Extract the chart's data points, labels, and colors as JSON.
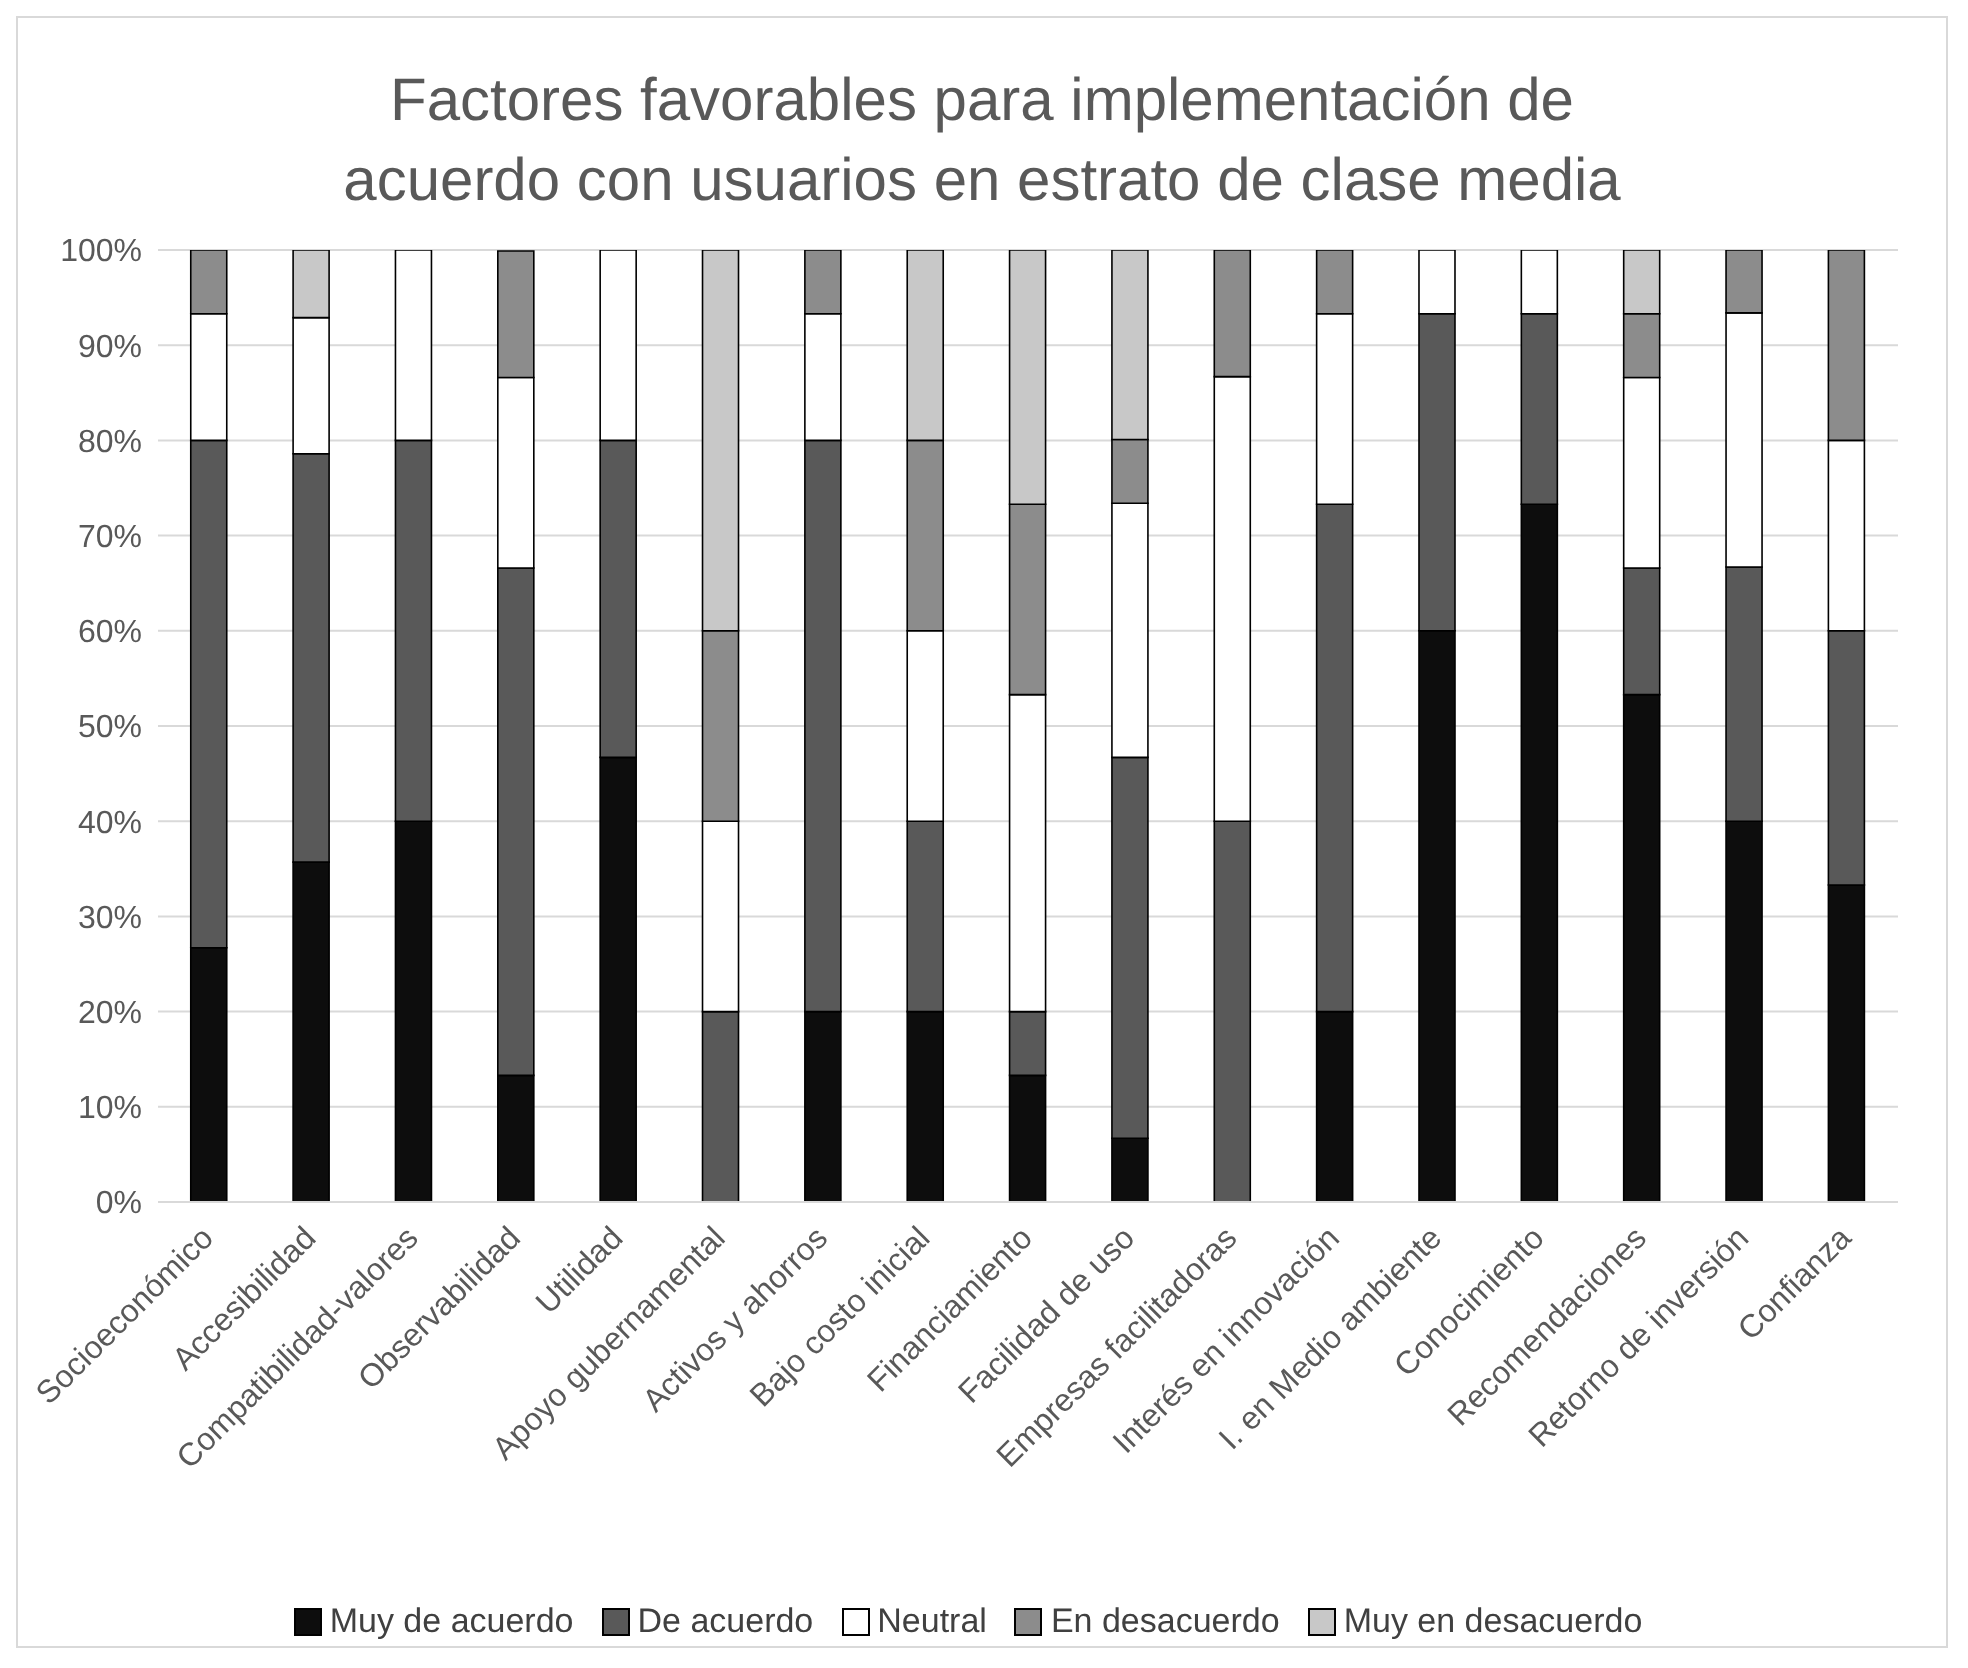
{
  "chart_data": {
    "type": "bar",
    "title": "Factores favorables para implementación de acuerdo con usuarios en estrato de clase media",
    "stacked": true,
    "categories": [
      "Socioeconómico",
      "Accesibilidad",
      "Compatibilidad-valores",
      "Observabilidad",
      "Utilidad",
      "Apoyo gubernamental",
      "Activos y ahorros",
      "Bajo costo inicial",
      "Financiamiento",
      "Facilidad de uso",
      "Empresas facilitadoras",
      "Interés en innovación",
      "I. en Medio ambiente",
      "Conocimiento",
      "Recomendaciones",
      "Retorno de inversión",
      "Confianza"
    ],
    "series": [
      {
        "name": "Muy de acuerdo",
        "color": "#0d0d0d",
        "values": [
          26.7,
          35.7,
          40,
          13.3,
          46.7,
          0,
          20,
          20,
          13.3,
          6.7,
          0,
          20,
          60,
          73.3,
          53.3,
          40,
          33.3
        ]
      },
      {
        "name": "De acuerdo",
        "color": "#595959",
        "values": [
          53.3,
          42.9,
          40,
          53.3,
          33.3,
          20,
          60,
          20,
          6.7,
          40,
          40,
          53.3,
          33.3,
          20,
          13.3,
          26.7,
          26.7
        ]
      },
      {
        "name": "Neutral",
        "color": "#ffffff",
        "values": [
          13.3,
          14.3,
          20,
          20,
          20,
          20,
          13.3,
          20,
          33.3,
          26.7,
          46.7,
          20,
          6.7,
          6.7,
          20,
          26.7,
          20
        ]
      },
      {
        "name": "En desacuerdo",
        "color": "#8c8c8c",
        "values": [
          6.7,
          0,
          0,
          13.3,
          0,
          20,
          6.7,
          20,
          20,
          6.7,
          13.3,
          6.7,
          0,
          0,
          6.7,
          6.7,
          20
        ]
      },
      {
        "name": "Muy en desacuerdo",
        "color": "#c8c8c8",
        "values": [
          0,
          7.1,
          0,
          0,
          0,
          40,
          0,
          20,
          26.7,
          20,
          0,
          0,
          0,
          0,
          6.7,
          0,
          0
        ]
      }
    ],
    "ylim": [
      0,
      100
    ],
    "yticks": [
      {
        "value": 0,
        "label": "0%"
      },
      {
        "value": 10,
        "label": "10%"
      },
      {
        "value": 20,
        "label": "20%"
      },
      {
        "value": 30,
        "label": "30%"
      },
      {
        "value": 40,
        "label": "40%"
      },
      {
        "value": 50,
        "label": "50%"
      },
      {
        "value": 60,
        "label": "60%"
      },
      {
        "value": 70,
        "label": "70%"
      },
      {
        "value": 80,
        "label": "80%"
      },
      {
        "value": 90,
        "label": "90%"
      },
      {
        "value": 100,
        "label": "100%"
      }
    ],
    "grid": "y",
    "legend": "bottom"
  }
}
